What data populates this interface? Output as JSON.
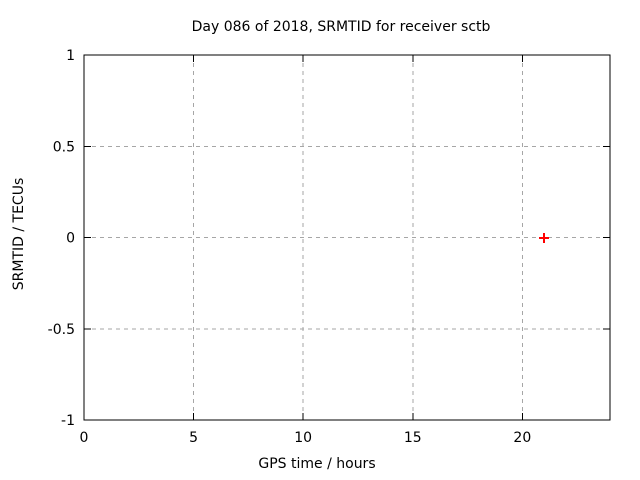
{
  "chart_data": {
    "type": "scatter",
    "title": "Day 086 of 2018, SRMTID for receiver sctb",
    "xlabel": "GPS time / hours",
    "ylabel": "SRMTID / TECUs",
    "xlim": [
      0,
      24
    ],
    "ylim": [
      -1,
      1
    ],
    "xticks": [
      0,
      5,
      10,
      15,
      20
    ],
    "yticks": [
      -1,
      -0.5,
      0,
      0.5,
      1
    ],
    "xtick_labels": [
      "0",
      "5",
      "10",
      "15",
      "20"
    ],
    "ytick_labels": [
      "-1",
      "-0.5",
      "0",
      "0.5",
      "1"
    ],
    "grid": true,
    "grid_style": "dashed",
    "legend": "none",
    "series": [
      {
        "name": "SRMTID",
        "marker": "plus",
        "color": "#ff0000",
        "points": [
          [
            21,
            0
          ]
        ]
      }
    ],
    "colors": {
      "background": "#ffffff",
      "border": "#000000",
      "grid": "#a6a6a6",
      "text": "#000000",
      "marker": "#ff0000"
    }
  }
}
